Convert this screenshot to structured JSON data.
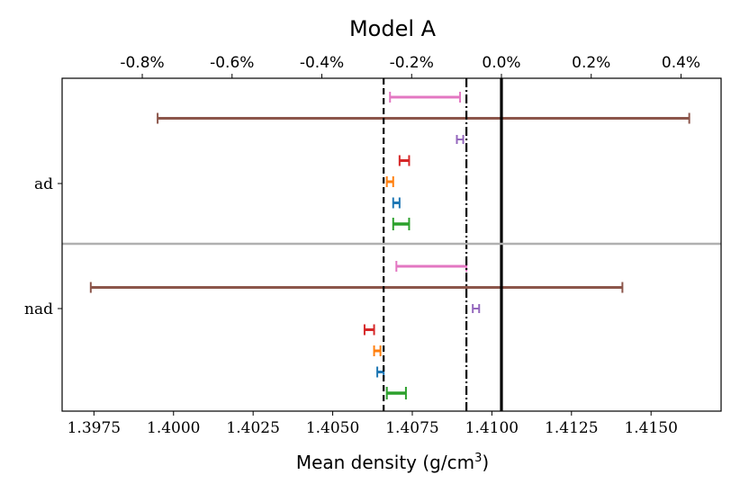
{
  "chart_data": {
    "type": "errorbar",
    "title": "Model A",
    "xlabel": "Mean density (g/cm",
    "xlabel_sup": "3",
    "xlabel_close": ")",
    "xlim": [
      1.3965,
      1.4172
    ],
    "xticks": [
      1.3975,
      1.4,
      1.4025,
      1.405,
      1.4075,
      1.41,
      1.4125,
      1.415
    ],
    "xtick_labels": [
      "1.3975",
      "1.4000",
      "1.4025",
      "1.4050",
      "1.4075",
      "1.4100",
      "1.4125",
      "1.4150"
    ],
    "top_axis": {
      "unit": "percent deviation from reference",
      "reference": 1.4103,
      "ticks": [
        -0.8,
        -0.6,
        -0.4,
        -0.2,
        0.0,
        0.2,
        0.4
      ],
      "tick_labels": [
        "-0.8%",
        "-0.6%",
        "-0.4%",
        "-0.2%",
        "0.0%",
        "0.2%",
        "0.4%"
      ]
    },
    "groups": [
      "ad",
      "nad"
    ],
    "reference_lines": [
      {
        "name": "solid",
        "x": 1.4103,
        "style": "solid"
      },
      {
        "name": "dashdot",
        "x": 1.4092,
        "style": "dashdot"
      },
      {
        "name": "dashed",
        "x": 1.4066,
        "style": "dashed"
      }
    ],
    "series": [
      {
        "color": "#e377c2",
        "ad": [
          1.4068,
          1.409
        ],
        "nad": [
          1.407,
          1.4092
        ]
      },
      {
        "color": "#8c564b",
        "ad": [
          1.3995,
          1.4162
        ],
        "nad": [
          1.3974,
          1.4141
        ]
      },
      {
        "color": "#9467bd",
        "ad": [
          1.4089,
          1.4091
        ],
        "nad": [
          1.4094,
          1.4096
        ]
      },
      {
        "color": "#d62728",
        "ad": [
          1.4071,
          1.4074
        ],
        "nad": [
          1.406,
          1.4063
        ]
      },
      {
        "color": "#ff7f0e",
        "ad": [
          1.4067,
          1.4069
        ],
        "nad": [
          1.4063,
          1.4065
        ]
      },
      {
        "color": "#1f77b4",
        "ad": [
          1.4069,
          1.4071
        ],
        "nad": [
          1.4064,
          1.4066
        ]
      },
      {
        "color": "#2ca02c",
        "ad": [
          1.4069,
          1.4074
        ],
        "nad": [
          1.4067,
          1.4073
        ]
      }
    ]
  }
}
